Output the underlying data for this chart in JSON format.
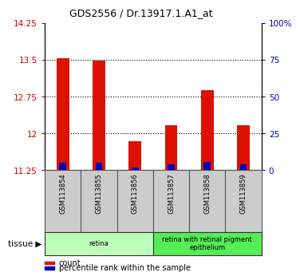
{
  "title": "GDS2556 / Dr.13917.1.A1_at",
  "samples": [
    "GSM113854",
    "GSM113855",
    "GSM113856",
    "GSM113857",
    "GSM113858",
    "GSM113859"
  ],
  "count_values": [
    13.53,
    13.49,
    11.85,
    12.17,
    12.88,
    12.17
  ],
  "percentile_values": [
    5.0,
    5.0,
    2.0,
    4.0,
    5.5,
    4.0
  ],
  "baseline": 11.25,
  "ylim_left": [
    11.25,
    14.25
  ],
  "ylim_right": [
    0,
    100
  ],
  "yticks_left": [
    11.25,
    12.0,
    12.75,
    13.5,
    14.25
  ],
  "yticks_right": [
    0,
    25,
    50,
    75,
    100
  ],
  "ytick_labels_left": [
    "11.25",
    "12",
    "12.75",
    "13.5",
    "14.25"
  ],
  "ytick_labels_right": [
    "0",
    "25",
    "50",
    "75",
    "100%"
  ],
  "tissue_groups": [
    {
      "label": "retina",
      "start": 0,
      "end": 3,
      "color": "#bbffbb"
    },
    {
      "label": "retina with retinal pigment\nepithelium",
      "start": 3,
      "end": 6,
      "color": "#55ee55"
    }
  ],
  "tissue_label": "tissue",
  "legend_items": [
    {
      "label": "count",
      "color": "#dd1100"
    },
    {
      "label": "percentile rank within the sample",
      "color": "#0000bb"
    }
  ],
  "bar_width": 0.35,
  "count_color": "#dd1100",
  "percentile_color": "#0000bb",
  "left_axis_color": "#cc0000",
  "right_axis_color": "#0000cc",
  "sample_box_color": "#cccccc",
  "sample_box_edge": "#888888"
}
